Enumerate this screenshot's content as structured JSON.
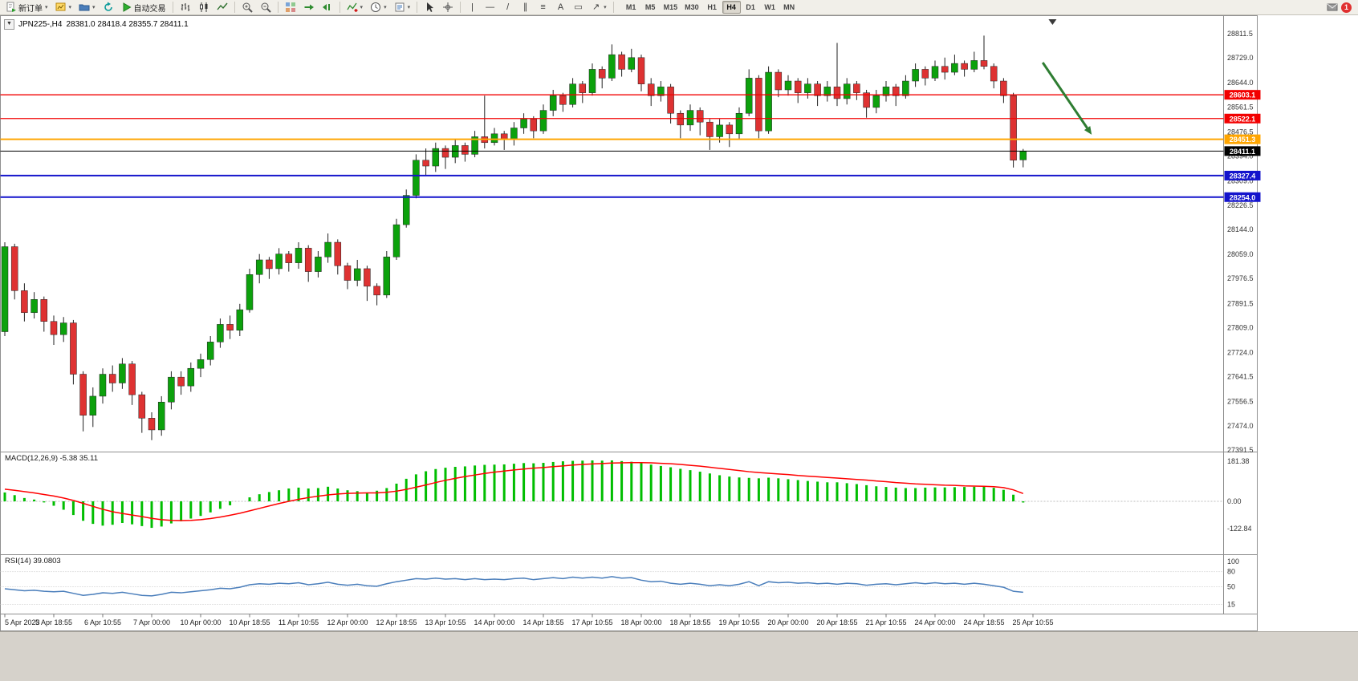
{
  "toolbar": {
    "new_order_label": "新订单",
    "autotrading_label": "自动交易",
    "timeframes": [
      "M1",
      "M5",
      "M15",
      "M30",
      "H1",
      "H4",
      "D1",
      "W1",
      "MN"
    ],
    "active_timeframe": "H4",
    "notification_count": "1",
    "tools": {
      "vertical_line": "|",
      "horizontal_line": "—",
      "trendline": "/",
      "channel": "∥",
      "fibonacci": "≡",
      "text": "A",
      "label": "▭",
      "arrows": "↗"
    }
  },
  "chart": {
    "symbol_period": "JPN225-,H4",
    "ohlc_text": "28381.0 28418.4 28355.7 28411.1",
    "macd_label": "MACD(12,26,9) -5.38 35.11",
    "rsi_label": "RSI(14) 39.0803"
  },
  "chart_data": {
    "type": "candlestick",
    "symbol": "JPN225-",
    "timeframe": "H4",
    "ylim": [
      27391.5,
      28811.5
    ],
    "current_bar": {
      "open": 28381.0,
      "high": 28418.4,
      "low": 28355.7,
      "close": 28411.1
    },
    "y_axis_labels": [
      "28811.5",
      "28729.0",
      "28644.0",
      "28561.5",
      "28476.5",
      "28394.0",
      "28309.0",
      "28226.5",
      "28144.0",
      "28059.0",
      "27976.5",
      "27891.5",
      "27809.0",
      "27724.0",
      "27641.5",
      "27556.5",
      "27474.0",
      "27391.5"
    ],
    "x_labels": [
      "5 Apr 2023",
      "5 Apr 18:55",
      "6 Apr 10:55",
      "7 Apr 00:00",
      "10 Apr 00:00",
      "10 Apr 18:55",
      "11 Apr 10:55",
      "12 Apr 00:00",
      "12 Apr 18:55",
      "13 Apr 10:55",
      "14 Apr 00:00",
      "14 Apr 18:55",
      "17 Apr 10:55",
      "18 Apr 00:00",
      "18 Apr 18:55",
      "19 Apr 10:55",
      "20 Apr 00:00",
      "20 Apr 18:55",
      "21 Apr 10:55",
      "24 Apr 00:00",
      "24 Apr 18:55",
      "25 Apr 10:55"
    ],
    "bars_per_label": 5,
    "candles": [
      [
        27795,
        28100,
        27780,
        28085
      ],
      [
        28085,
        28095,
        27905,
        27935
      ],
      [
        27935,
        27960,
        27830,
        27860
      ],
      [
        27860,
        27930,
        27840,
        27905
      ],
      [
        27905,
        27915,
        27795,
        27830
      ],
      [
        27830,
        27850,
        27750,
        27785
      ],
      [
        27785,
        27845,
        27760,
        27825
      ],
      [
        27825,
        27835,
        27615,
        27650
      ],
      [
        27650,
        27660,
        27455,
        27510
      ],
      [
        27510,
        27605,
        27470,
        27575
      ],
      [
        27575,
        27670,
        27550,
        27650
      ],
      [
        27650,
        27680,
        27590,
        27620
      ],
      [
        27620,
        27705,
        27600,
        27685
      ],
      [
        27685,
        27695,
        27545,
        27580
      ],
      [
        27580,
        27590,
        27450,
        27500
      ],
      [
        27500,
        27520,
        27425,
        27460
      ],
      [
        27460,
        27575,
        27440,
        27555
      ],
      [
        27555,
        27660,
        27530,
        27640
      ],
      [
        27640,
        27660,
        27580,
        27610
      ],
      [
        27610,
        27690,
        27590,
        27670
      ],
      [
        27670,
        27720,
        27640,
        27700
      ],
      [
        27700,
        27780,
        27680,
        27760
      ],
      [
        27760,
        27840,
        27740,
        27820
      ],
      [
        27820,
        27850,
        27770,
        27800
      ],
      [
        27800,
        27890,
        27780,
        27870
      ],
      [
        27870,
        28010,
        27860,
        27990
      ],
      [
        27990,
        28060,
        27960,
        28040
      ],
      [
        28040,
        28050,
        27975,
        28010
      ],
      [
        28010,
        28080,
        27990,
        28060
      ],
      [
        28060,
        28070,
        28000,
        28030
      ],
      [
        28030,
        28100,
        28010,
        28080
      ],
      [
        28080,
        28090,
        27965,
        28000
      ],
      [
        28000,
        28070,
        27980,
        28050
      ],
      [
        28050,
        28130,
        28030,
        28100
      ],
      [
        28100,
        28110,
        27990,
        28020
      ],
      [
        28020,
        28030,
        27940,
        27970
      ],
      [
        27970,
        28040,
        27950,
        28010
      ],
      [
        28010,
        28020,
        27900,
        27950
      ],
      [
        27950,
        27960,
        27885,
        27920
      ],
      [
        27920,
        28070,
        27910,
        28050
      ],
      [
        28050,
        28180,
        28040,
        28160
      ],
      [
        28160,
        28280,
        28150,
        28260
      ],
      [
        28260,
        28400,
        28250,
        28380
      ],
      [
        28380,
        28420,
        28330,
        28360
      ],
      [
        28360,
        28440,
        28340,
        28420
      ],
      [
        28420,
        28430,
        28350,
        28390
      ],
      [
        28390,
        28450,
        28370,
        28430
      ],
      [
        28430,
        28440,
        28375,
        28400
      ],
      [
        28400,
        28480,
        28390,
        28460
      ],
      [
        28460,
        28600,
        28420,
        28440
      ],
      [
        28440,
        28490,
        28430,
        28470
      ],
      [
        28470,
        28480,
        28415,
        28450
      ],
      [
        28450,
        28510,
        28430,
        28490
      ],
      [
        28490,
        28540,
        28470,
        28520
      ],
      [
        28520,
        28530,
        28455,
        28480
      ],
      [
        28480,
        28570,
        28470,
        28550
      ],
      [
        28550,
        28620,
        28530,
        28600
      ],
      [
        28600,
        28610,
        28545,
        28570
      ],
      [
        28570,
        28660,
        28560,
        28640
      ],
      [
        28640,
        28650,
        28575,
        28610
      ],
      [
        28610,
        28710,
        28600,
        28690
      ],
      [
        28690,
        28700,
        28625,
        28660
      ],
      [
        28660,
        28775,
        28650,
        28740
      ],
      [
        28740,
        28750,
        28665,
        28690
      ],
      [
        28690,
        28760,
        28680,
        28730
      ],
      [
        28730,
        28740,
        28615,
        28640
      ],
      [
        28640,
        28660,
        28565,
        28600
      ],
      [
        28600,
        28650,
        28580,
        28630
      ],
      [
        28630,
        28640,
        28505,
        28540
      ],
      [
        28540,
        28550,
        28455,
        28500
      ],
      [
        28500,
        28570,
        28480,
        28550
      ],
      [
        28550,
        28560,
        28465,
        28510
      ],
      [
        28510,
        28520,
        28415,
        28460
      ],
      [
        28460,
        28520,
        28440,
        28500
      ],
      [
        28500,
        28510,
        28425,
        28470
      ],
      [
        28470,
        28560,
        28450,
        28540
      ],
      [
        28540,
        28690,
        28530,
        28660
      ],
      [
        28660,
        28670,
        28455,
        28480
      ],
      [
        28480,
        28700,
        28470,
        28680
      ],
      [
        28680,
        28690,
        28595,
        28620
      ],
      [
        28620,
        28670,
        28600,
        28650
      ],
      [
        28650,
        28660,
        28575,
        28610
      ],
      [
        28610,
        28660,
        28590,
        28640
      ],
      [
        28640,
        28650,
        28565,
        28600
      ],
      [
        28600,
        28650,
        28580,
        28630
      ],
      [
        28630,
        28780,
        28565,
        28590
      ],
      [
        28590,
        28660,
        28570,
        28640
      ],
      [
        28640,
        28650,
        28585,
        28610
      ],
      [
        28610,
        28620,
        28525,
        28560
      ],
      [
        28560,
        28620,
        28540,
        28600
      ],
      [
        28600,
        28650,
        28580,
        28630
      ],
      [
        28630,
        28640,
        28565,
        28600
      ],
      [
        28600,
        28670,
        28590,
        28650
      ],
      [
        28650,
        28710,
        28630,
        28690
      ],
      [
        28690,
        28700,
        28635,
        28660
      ],
      [
        28660,
        28720,
        28650,
        28700
      ],
      [
        28700,
        28730,
        28655,
        28680
      ],
      [
        28680,
        28740,
        28670,
        28710
      ],
      [
        28710,
        28720,
        28665,
        28690
      ],
      [
        28690,
        28750,
        28680,
        28720
      ],
      [
        28720,
        28805,
        28690,
        28700
      ],
      [
        28700,
        28710,
        28625,
        28650
      ],
      [
        28650,
        28660,
        28575,
        28600
      ],
      [
        28600,
        28610,
        28355,
        28380
      ],
      [
        28381.0,
        28418.4,
        28355.7,
        28411.1
      ]
    ],
    "levels": [
      {
        "price": 28603.1,
        "label": "28603.1",
        "color": "#F20000",
        "width": 1.3,
        "kind": "resistance-line"
      },
      {
        "price": 28522.1,
        "label": "28522.1",
        "color": "#F20000",
        "width": 1.3,
        "kind": "resistance-line"
      },
      {
        "price": 28451.3,
        "label": "28451.3",
        "color": "#FFA500",
        "width": 2,
        "kind": "support-line"
      },
      {
        "price": 28411.1,
        "label": "28411.1",
        "color": "#000000",
        "width": 1,
        "kind": "current-price-line"
      },
      {
        "price": 28327.4,
        "label": "28327.4",
        "color": "#1414CC",
        "width": 2,
        "kind": "support-line"
      },
      {
        "price": 28254.0,
        "label": "28254.0",
        "color": "#1414CC",
        "width": 2,
        "kind": "support-line"
      }
    ],
    "annotation_arrow": {
      "from_bar": 106,
      "from_price": 28713,
      "to_bar": 111,
      "to_price": 28467,
      "color": "#2E7D32"
    },
    "shift_marker_bar": 107,
    "indicators": {
      "macd": {
        "name": "MACD",
        "params": "12,26,9",
        "main_value": -5.38,
        "signal_value": 35.11,
        "axis_labels": [
          "181.38",
          "0.00",
          "-122.84"
        ],
        "histogram": [
          40,
          28,
          15,
          8,
          -5,
          -20,
          -38,
          -62,
          -88,
          -102,
          -110,
          -106,
          -98,
          -104,
          -112,
          -120,
          -114,
          -100,
          -90,
          -78,
          -66,
          -50,
          -34,
          -18,
          0,
          18,
          32,
          42,
          50,
          58,
          62,
          58,
          60,
          66,
          58,
          50,
          46,
          40,
          48,
          60,
          80,
          102,
          122,
          136,
          146,
          152,
          156,
          158,
          162,
          165,
          166,
          167,
          170,
          173,
          172,
          174,
          178,
          181,
          183,
          184,
          185,
          184,
          185,
          182,
          179,
          173,
          166,
          160,
          154,
          147,
          141,
          134,
          126,
          118,
          112,
          108,
          106,
          104,
          107,
          104,
          100,
          96,
          92,
          89,
          86,
          86,
          82,
          78,
          73,
          68,
          65,
          62,
          60,
          60,
          62,
          63,
          63,
          64,
          65,
          66,
          66,
          61,
          52,
          30,
          -5.38
        ],
        "signal": [
          55,
          50,
          44,
          38,
          31,
          24,
          15,
          4,
          -9,
          -23,
          -36,
          -47,
          -55,
          -62,
          -69,
          -77,
          -83,
          -86,
          -87,
          -86,
          -83,
          -78,
          -71,
          -63,
          -54,
          -43,
          -32,
          -21,
          -10,
          0,
          9,
          17,
          23,
          29,
          33,
          36,
          37,
          38,
          38,
          41,
          46,
          54,
          64,
          74,
          85,
          95,
          104,
          112,
          119,
          126,
          132,
          137,
          142,
          146,
          150,
          153,
          157,
          160,
          164,
          167,
          169,
          171,
          173,
          174,
          175,
          175,
          174,
          172,
          170,
          167,
          163,
          159,
          154,
          149,
          144,
          139,
          134,
          130,
          127,
          124,
          121,
          117,
          114,
          111,
          108,
          105,
          102,
          99,
          96,
          92,
          89,
          85,
          82,
          79,
          77,
          75,
          73,
          72,
          70,
          69,
          68,
          66,
          62,
          52,
          35.11
        ]
      },
      "rsi": {
        "name": "RSI",
        "period": 14,
        "value": 39.0803,
        "axis_labels": [
          "100",
          "80",
          "50",
          "15"
        ],
        "levels": [
          80,
          50,
          15
        ],
        "series": [
          46,
          44,
          42,
          43,
          41,
          40,
          41,
          37,
          33,
          35,
          38,
          37,
          39,
          36,
          33,
          32,
          35,
          39,
          38,
          40,
          42,
          44,
          47,
          46,
          49,
          54,
          56,
          55,
          57,
          56,
          58,
          54,
          56,
          59,
          55,
          53,
          55,
          52,
          51,
          56,
          60,
          63,
          66,
          65,
          67,
          65,
          66,
          64,
          66,
          64,
          65,
          64,
          66,
          67,
          64,
          66,
          68,
          66,
          69,
          67,
          69,
          67,
          70,
          67,
          68,
          63,
          60,
          61,
          57,
          55,
          57,
          55,
          52,
          54,
          52,
          55,
          60,
          52,
          60,
          58,
          59,
          57,
          58,
          56,
          57,
          55,
          57,
          56,
          53,
          55,
          56,
          54,
          56,
          58,
          56,
          58,
          56,
          57,
          55,
          57,
          55,
          52,
          49,
          41,
          39.08
        ]
      }
    }
  }
}
